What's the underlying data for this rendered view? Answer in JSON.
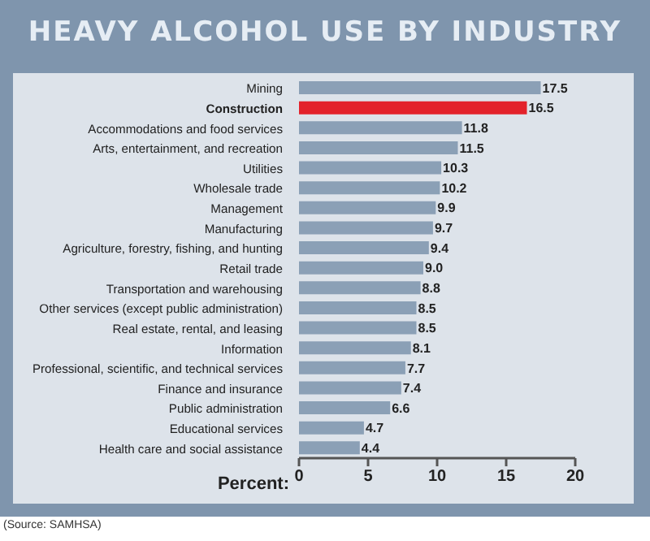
{
  "chart_data": {
    "type": "bar",
    "orientation": "horizontal",
    "title": "HEAVY ALCOHOL USE BY INDUSTRY",
    "xlabel": "Percent:",
    "categories": [
      "Mining",
      "Construction",
      "Accommodations and food services",
      "Arts, entertainment, and recreation",
      "Utilities",
      "Wholesale trade",
      "Management",
      "Manufacturing",
      "Agriculture, forestry, fishing, and hunting",
      "Retail trade",
      "Transportation and warehousing",
      "Other services (except public administration)",
      "Real estate, rental, and leasing",
      "Information",
      "Professional, scientific, and technical services",
      "Finance and insurance",
      "Public administration",
      "Educational services",
      "Health care and social assistance"
    ],
    "values": [
      17.5,
      16.5,
      11.8,
      11.5,
      10.3,
      10.2,
      9.9,
      9.7,
      9.4,
      9.0,
      8.8,
      8.5,
      8.5,
      8.1,
      7.7,
      7.4,
      6.6,
      4.7,
      4.4
    ],
    "value_labels": [
      "17.5",
      "16.5",
      "11.8",
      "11.5",
      "10.3",
      "10.2",
      "9.9",
      "9.7",
      "9.4",
      "9.0",
      "8.8",
      "8.5",
      "8.5",
      "8.1",
      "7.7",
      "7.4",
      "6.6",
      "4.7",
      "4.4"
    ],
    "colors": [
      "#8ba0b6",
      "#e3222b",
      "#8ba0b6",
      "#8ba0b6",
      "#8ba0b6",
      "#8ba0b6",
      "#8ba0b6",
      "#8ba0b6",
      "#8ba0b6",
      "#8ba0b6",
      "#8ba0b6",
      "#8ba0b6",
      "#8ba0b6",
      "#8ba0b6",
      "#8ba0b6",
      "#8ba0b6",
      "#8ba0b6",
      "#8ba0b6",
      "#8ba0b6"
    ],
    "xlim": [
      0,
      20
    ],
    "xticks": [
      0,
      5,
      10,
      15,
      20
    ],
    "grid": false,
    "legend": false,
    "annotations": [
      "(Source: SAMHSA)"
    ]
  }
}
